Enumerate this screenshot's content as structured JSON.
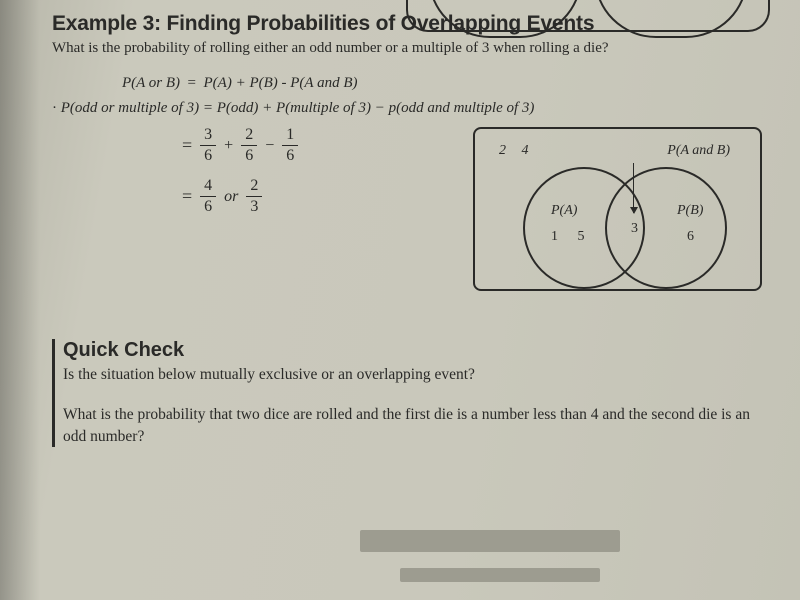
{
  "header": {
    "title": "Example 3: Finding Probabilities of Overlapping Events",
    "question": "What is the probability of rolling either an odd number or a multiple of 3 when rolling a die?"
  },
  "formula": {
    "general_lhs": "P(A or B)",
    "general_rhs": "P(A) + P(B) - P(A and B)",
    "applied_lhs": "P(odd or multiple of 3)",
    "applied_rhs": "P(odd) + P(multiple of 3) − p(odd and multiple of 3)"
  },
  "work": {
    "step1": {
      "a_num": "3",
      "a_den": "6",
      "op1": "+",
      "b_num": "2",
      "b_den": "6",
      "op2": "−",
      "c_num": "1",
      "c_den": "6"
    },
    "step2": {
      "a_num": "4",
      "a_den": "6",
      "or": "or",
      "b_num": "2",
      "b_den": "3"
    }
  },
  "venn": {
    "outside": "2  4",
    "p_and": "P(A and B)",
    "pa": "P(A)",
    "pb": "P(B)",
    "a_vals": "1  5",
    "mid": "3",
    "b_vals": "6"
  },
  "quick_check": {
    "heading": "Quick Check",
    "line1": "Is the situation below mutually exclusive or an overlapping event?",
    "line2": "What is the probability that two dice are rolled and the first die is a number less than 4 and the second die is an odd number?"
  }
}
